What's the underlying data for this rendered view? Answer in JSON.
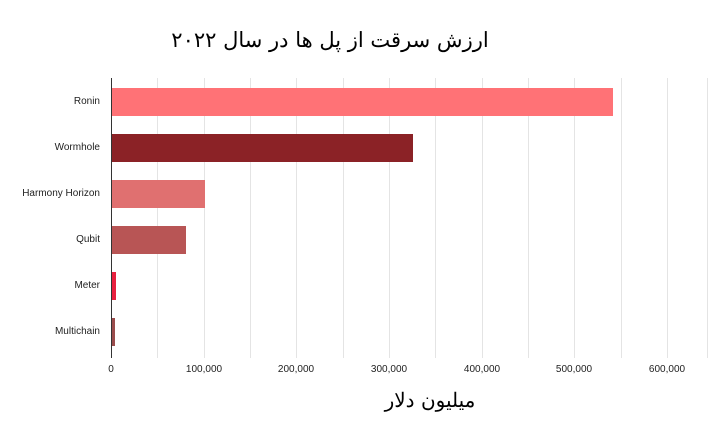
{
  "chart_data": {
    "type": "bar",
    "orientation": "horizontal",
    "title": "ارزش سرقت از پل ها در سال ۲۰۲۲",
    "xlabel": "میلیون دلار",
    "ylabel": "",
    "categories": [
      "Ronin",
      "Wormhole",
      "Harmony Horizon",
      "Qubit",
      "Meter",
      "Multichain"
    ],
    "values": [
      540000,
      325000,
      100000,
      80000,
      4400,
      3000
    ],
    "colors": [
      "#ff7276",
      "#8b2226",
      "#e07070",
      "#b85555",
      "#e8203f",
      "#9a4c4c"
    ],
    "xlim": [
      0,
      650000
    ],
    "xticks": [
      "0",
      "100,000",
      "200,000",
      "300,000",
      "400,000",
      "500,000",
      "600,000"
    ],
    "grid": true,
    "legend": "none"
  },
  "labels": {
    "title": "ارزش سرقت از پل ها در سال ۲۰۲۲",
    "xlabel": "میلیون دلار",
    "categories": [
      "Ronin",
      "Wormhole",
      "Harmony Horizon",
      "Qubit",
      "Meter",
      "Multichain"
    ],
    "xticks": [
      "0",
      "100,000",
      "200,000",
      "300,000",
      "400,000",
      "500,000",
      "600,000"
    ]
  }
}
